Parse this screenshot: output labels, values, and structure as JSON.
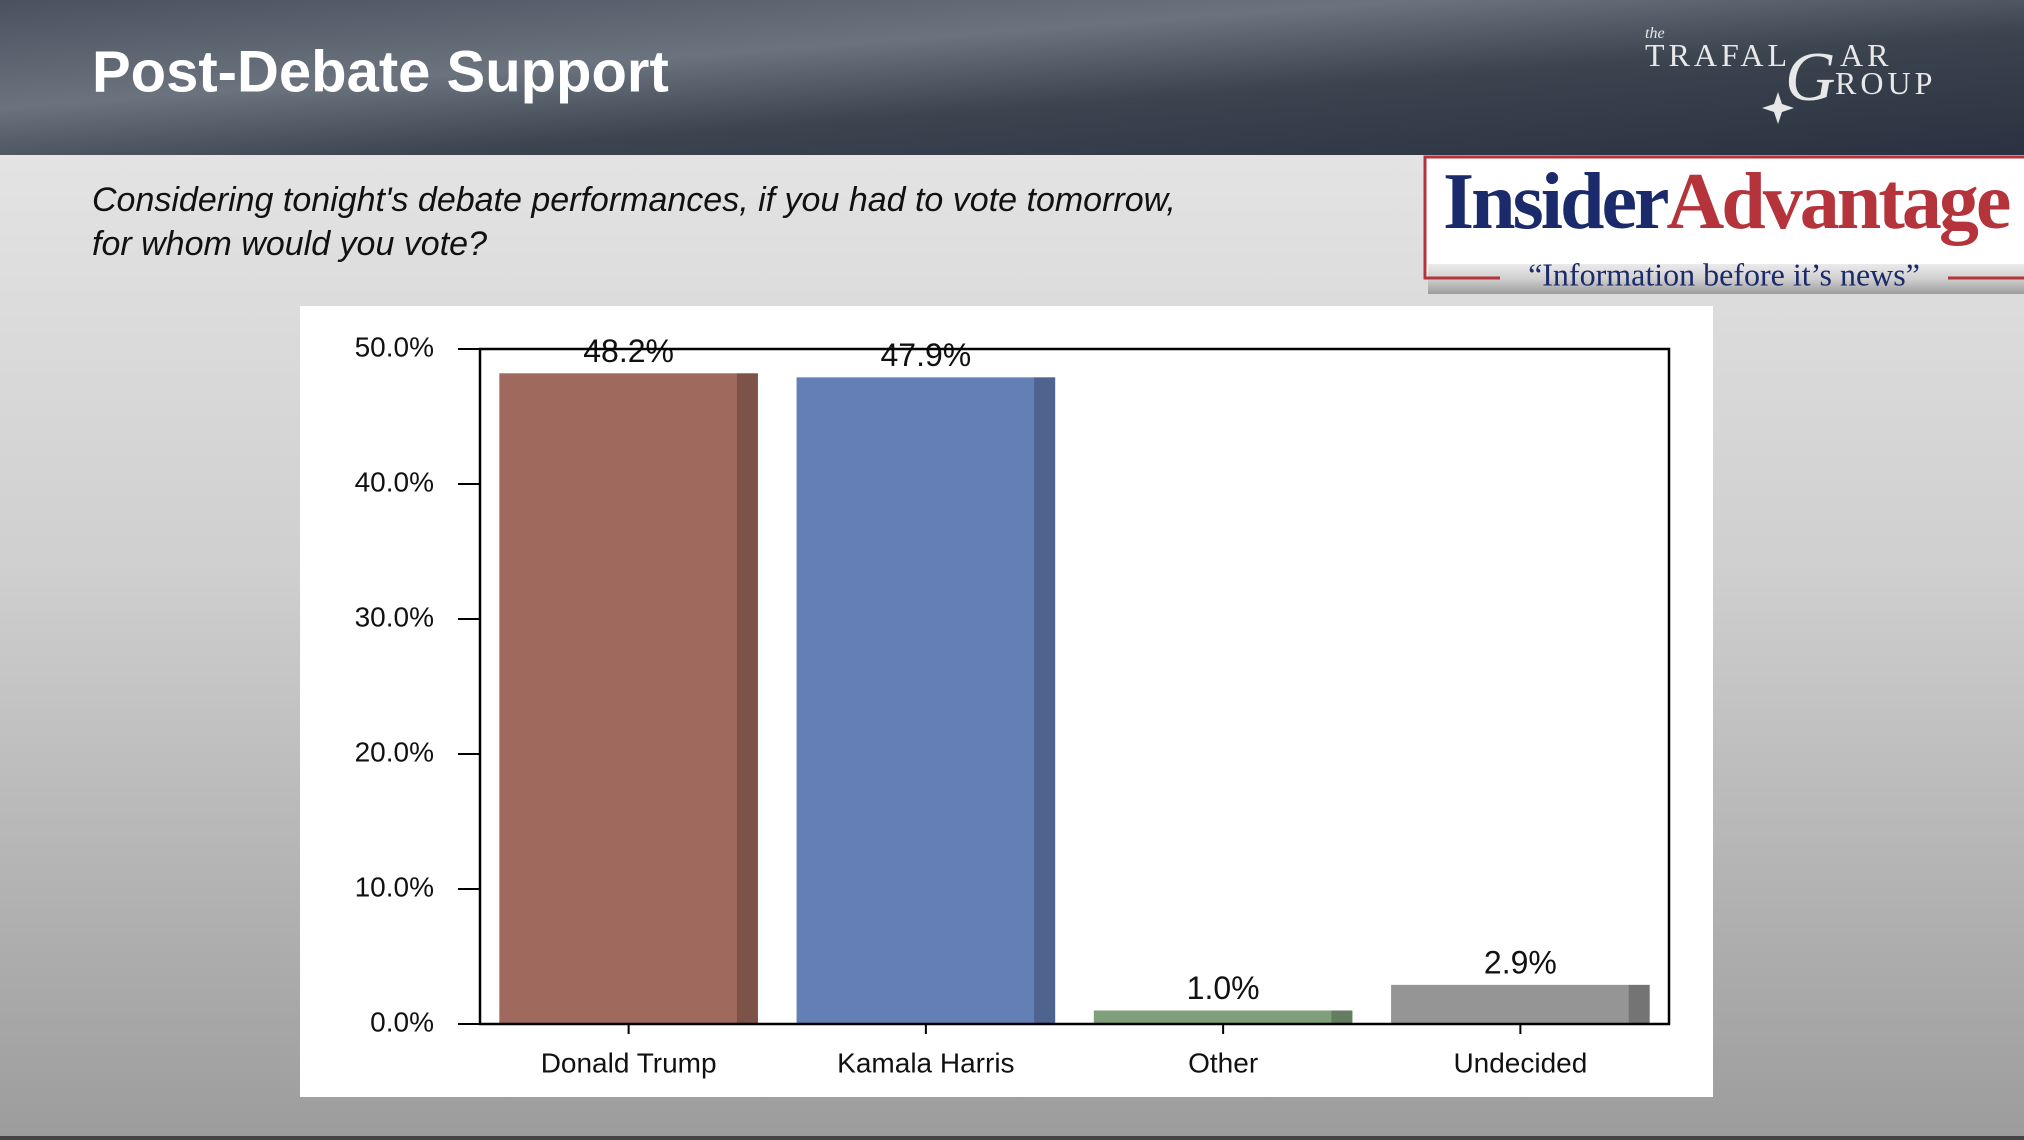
{
  "header": {
    "title": "Post-Debate Support",
    "subtitle_lines": [
      "Considering tonight's debate performances, if you had to vote tomorrow,",
      "for whom would you vote?"
    ]
  },
  "logos": {
    "trafalgar": {
      "the": "the",
      "line1": "TRAFAL",
      "big_g": "G",
      "line1_end": "AR",
      "line2": "ROUP"
    },
    "insider_advantage": {
      "part1": "Insider",
      "part2": "Advantage",
      "tagline": "“Information before it’s news”"
    }
  },
  "chart_data": {
    "type": "bar",
    "categories": [
      "Donald Trump",
      "Kamala Harris",
      "Other",
      "Undecided"
    ],
    "values": [
      48.2,
      47.9,
      1.0,
      2.9
    ],
    "value_labels": [
      "48.2%",
      "47.9%",
      "1.0%",
      "2.9%"
    ],
    "colors": [
      "#a0695e",
      "#647fb5",
      "#7fa07a",
      "#959595"
    ],
    "ylim": [
      0,
      50
    ],
    "yticks": [
      {
        "value": 0,
        "label": "0.0%"
      },
      {
        "value": 10,
        "label": "10.0%"
      },
      {
        "value": 20,
        "label": "20.0%"
      },
      {
        "value": 30,
        "label": "30.0%"
      },
      {
        "value": 40,
        "label": "40.0%"
      },
      {
        "value": 50,
        "label": "50.0%"
      }
    ]
  }
}
